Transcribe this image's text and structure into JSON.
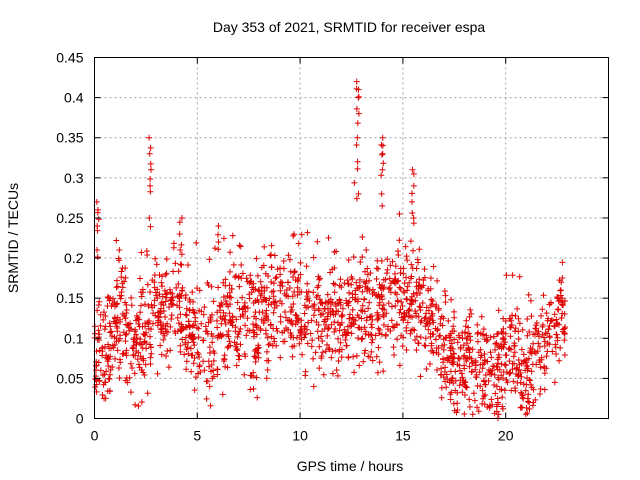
{
  "chart_data": {
    "type": "scatter",
    "title": "Day 353 of 2021, SRMTID for receiver espa",
    "xlabel": "GPS time / hours",
    "ylabel": "SRMTID / TECUs",
    "xlim": [
      0,
      25
    ],
    "ylim": [
      0,
      0.45
    ],
    "xticks": [
      0,
      5,
      10,
      15,
      20
    ],
    "yticks": [
      0,
      0.05,
      0.1,
      0.15,
      0.2,
      0.25,
      0.3,
      0.35,
      0.4,
      0.45
    ],
    "xtick_labels": [
      "0",
      "5",
      "10",
      "15",
      "20"
    ],
    "ytick_labels": [
      "0",
      "0.05",
      "0.1",
      "0.15",
      "0.2",
      "0.25",
      "0.3",
      "0.35",
      "0.4",
      "0.45"
    ],
    "grid": true,
    "marker": "+",
    "color": "#e00000",
    "series": [
      {
        "name": "SRMTID",
        "profile": [
          [
            0.0,
            0.07
          ],
          [
            0.3,
            0.09
          ],
          [
            0.6,
            0.08
          ],
          [
            1.0,
            0.13
          ],
          [
            1.5,
            0.11
          ],
          [
            2.0,
            0.09
          ],
          [
            2.5,
            0.1
          ],
          [
            3.0,
            0.13
          ],
          [
            3.5,
            0.14
          ],
          [
            4.0,
            0.15
          ],
          [
            4.5,
            0.12
          ],
          [
            5.0,
            0.1
          ],
          [
            5.5,
            0.09
          ],
          [
            6.0,
            0.1
          ],
          [
            6.5,
            0.14
          ],
          [
            7.0,
            0.13
          ],
          [
            7.5,
            0.12
          ],
          [
            8.0,
            0.12
          ],
          [
            8.5,
            0.13
          ],
          [
            9.0,
            0.15
          ],
          [
            9.5,
            0.15
          ],
          [
            10.0,
            0.14
          ],
          [
            10.5,
            0.13
          ],
          [
            11.0,
            0.12
          ],
          [
            11.5,
            0.13
          ],
          [
            12.0,
            0.13
          ],
          [
            12.5,
            0.14
          ],
          [
            13.0,
            0.15
          ],
          [
            13.5,
            0.13
          ],
          [
            14.0,
            0.15
          ],
          [
            14.5,
            0.16
          ],
          [
            15.0,
            0.14
          ],
          [
            15.5,
            0.15
          ],
          [
            16.0,
            0.14
          ],
          [
            16.5,
            0.12
          ],
          [
            17.0,
            0.08
          ],
          [
            17.5,
            0.07
          ],
          [
            18.0,
            0.07
          ],
          [
            18.5,
            0.065
          ],
          [
            19.0,
            0.055
          ],
          [
            19.5,
            0.06
          ],
          [
            20.0,
            0.08
          ],
          [
            20.5,
            0.08
          ],
          [
            21.0,
            0.075
          ],
          [
            21.5,
            0.07
          ],
          [
            22.0,
            0.09
          ],
          [
            22.5,
            0.11
          ],
          [
            22.9,
            0.12
          ]
        ],
        "spikes": [
          {
            "x": 0.15,
            "values": [
              0.21,
              0.24,
              0.26,
              0.27
            ]
          },
          {
            "x": 2.7,
            "values": [
              0.25,
              0.29,
              0.31,
              0.33,
              0.35
            ]
          },
          {
            "x": 12.8,
            "values": [
              0.28,
              0.32,
              0.35,
              0.38,
              0.4,
              0.41,
              0.42
            ]
          },
          {
            "x": 14.0,
            "values": [
              0.28,
              0.31,
              0.33,
              0.34,
              0.35
            ]
          },
          {
            "x": 15.5,
            "values": [
              0.25,
              0.27,
              0.29,
              0.31
            ]
          },
          {
            "x": 6.0,
            "values": [
              0.22,
              0.24
            ]
          },
          {
            "x": 4.2,
            "values": [
              0.21,
              0.23,
              0.25
            ]
          },
          {
            "x": 22.7,
            "values": [
              0.15,
              0.16,
              0.17
            ]
          },
          {
            "x": 21.1,
            "values": [
              0.02,
              0.025,
              0.03
            ]
          },
          {
            "x": 19.6,
            "values": [
              0.015,
              0.02,
              0.025
            ]
          }
        ]
      }
    ]
  }
}
